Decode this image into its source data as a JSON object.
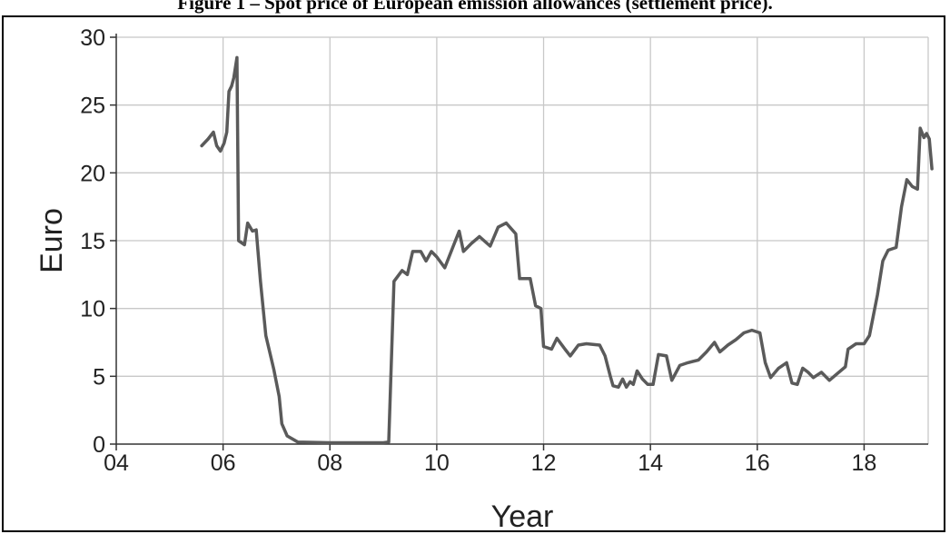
{
  "caption": "Figure 1 – Spot price of European emission allowances (settlement price).",
  "chart_data": {
    "type": "line",
    "title": "Figure 1 – Spot price of European emission allowances (settlement price).",
    "xlabel": "Year",
    "ylabel": "Euro",
    "xlim": [
      2004,
      2019.2
    ],
    "ylim": [
      0,
      30
    ],
    "x_ticks": [
      2004,
      2006,
      2008,
      2010,
      2012,
      2014,
      2016,
      2018
    ],
    "x_tick_labels": [
      "04",
      "06",
      "08",
      "10",
      "12",
      "14",
      "16",
      "18"
    ],
    "y_ticks": [
      0,
      5,
      10,
      15,
      20,
      25,
      30
    ],
    "y_tick_labels": [
      "0",
      "5",
      "10",
      "15",
      "20",
      "25",
      "30"
    ],
    "grid": true,
    "line_color": "#5a5a5a",
    "grid_color": "#c8c8c8",
    "series": [
      {
        "points": [
          [
            2005.6,
            22.0
          ],
          [
            2005.72,
            22.5
          ],
          [
            2005.82,
            23.0
          ],
          [
            2005.88,
            22.0
          ],
          [
            2005.95,
            21.6
          ],
          [
            2006.02,
            22.2
          ],
          [
            2006.07,
            23.0
          ],
          [
            2006.11,
            26.0
          ],
          [
            2006.16,
            26.4
          ],
          [
            2006.2,
            27.0
          ],
          [
            2006.26,
            28.5
          ],
          [
            2006.29,
            15.0
          ],
          [
            2006.4,
            14.7
          ],
          [
            2006.46,
            16.3
          ],
          [
            2006.55,
            15.7
          ],
          [
            2006.62,
            15.8
          ],
          [
            2006.7,
            12.0
          ],
          [
            2006.8,
            8.0
          ],
          [
            2006.95,
            5.5
          ],
          [
            2007.05,
            3.5
          ],
          [
            2007.1,
            1.5
          ],
          [
            2007.2,
            0.6
          ],
          [
            2007.4,
            0.15
          ],
          [
            2008.0,
            0.1
          ],
          [
            2009.0,
            0.1
          ],
          [
            2009.1,
            0.15
          ],
          [
            2009.2,
            12.0
          ],
          [
            2009.35,
            12.8
          ],
          [
            2009.45,
            12.5
          ],
          [
            2009.55,
            14.2
          ],
          [
            2009.7,
            14.2
          ],
          [
            2009.8,
            13.5
          ],
          [
            2009.9,
            14.2
          ],
          [
            2010.0,
            13.8
          ],
          [
            2010.15,
            13.0
          ],
          [
            2010.3,
            14.5
          ],
          [
            2010.42,
            15.7
          ],
          [
            2010.5,
            14.2
          ],
          [
            2010.65,
            14.8
          ],
          [
            2010.8,
            15.3
          ],
          [
            2011.0,
            14.6
          ],
          [
            2011.15,
            16.0
          ],
          [
            2011.3,
            16.3
          ],
          [
            2011.48,
            15.5
          ],
          [
            2011.55,
            12.2
          ],
          [
            2011.75,
            12.2
          ],
          [
            2011.85,
            10.2
          ],
          [
            2011.95,
            10.0
          ],
          [
            2012.0,
            7.2
          ],
          [
            2012.15,
            7.0
          ],
          [
            2012.25,
            7.8
          ],
          [
            2012.4,
            7.0
          ],
          [
            2012.5,
            6.5
          ],
          [
            2012.65,
            7.3
          ],
          [
            2012.8,
            7.4
          ],
          [
            2013.05,
            7.3
          ],
          [
            2013.15,
            6.5
          ],
          [
            2013.25,
            5.0
          ],
          [
            2013.3,
            4.3
          ],
          [
            2013.4,
            4.2
          ],
          [
            2013.48,
            4.8
          ],
          [
            2013.55,
            4.2
          ],
          [
            2013.62,
            4.6
          ],
          [
            2013.68,
            4.4
          ],
          [
            2013.75,
            5.4
          ],
          [
            2013.85,
            4.8
          ],
          [
            2013.95,
            4.4
          ],
          [
            2014.05,
            4.4
          ],
          [
            2014.15,
            6.6
          ],
          [
            2014.3,
            6.5
          ],
          [
            2014.4,
            4.7
          ],
          [
            2014.55,
            5.8
          ],
          [
            2014.7,
            6.0
          ],
          [
            2014.9,
            6.2
          ],
          [
            2015.05,
            6.8
          ],
          [
            2015.2,
            7.5
          ],
          [
            2015.3,
            6.8
          ],
          [
            2015.45,
            7.3
          ],
          [
            2015.6,
            7.7
          ],
          [
            2015.75,
            8.2
          ],
          [
            2015.9,
            8.4
          ],
          [
            2016.05,
            8.2
          ],
          [
            2016.15,
            6.0
          ],
          [
            2016.25,
            4.9
          ],
          [
            2016.4,
            5.6
          ],
          [
            2016.55,
            6.0
          ],
          [
            2016.65,
            4.5
          ],
          [
            2016.75,
            4.4
          ],
          [
            2016.85,
            5.6
          ],
          [
            2016.95,
            5.3
          ],
          [
            2017.05,
            4.9
          ],
          [
            2017.2,
            5.3
          ],
          [
            2017.35,
            4.7
          ],
          [
            2017.5,
            5.2
          ],
          [
            2017.65,
            5.7
          ],
          [
            2017.7,
            7.0
          ],
          [
            2017.85,
            7.4
          ],
          [
            2018.0,
            7.4
          ],
          [
            2018.1,
            8.0
          ],
          [
            2018.25,
            11.0
          ],
          [
            2018.35,
            13.5
          ],
          [
            2018.45,
            14.3
          ],
          [
            2018.6,
            14.5
          ],
          [
            2018.7,
            17.5
          ],
          [
            2018.8,
            19.5
          ],
          [
            2018.9,
            19.0
          ],
          [
            2019.0,
            18.8
          ],
          [
            2019.05,
            23.3
          ],
          [
            2019.12,
            22.6
          ],
          [
            2019.17,
            22.9
          ],
          [
            2019.22,
            22.5
          ],
          [
            2019.27,
            20.3
          ]
        ]
      }
    ]
  }
}
